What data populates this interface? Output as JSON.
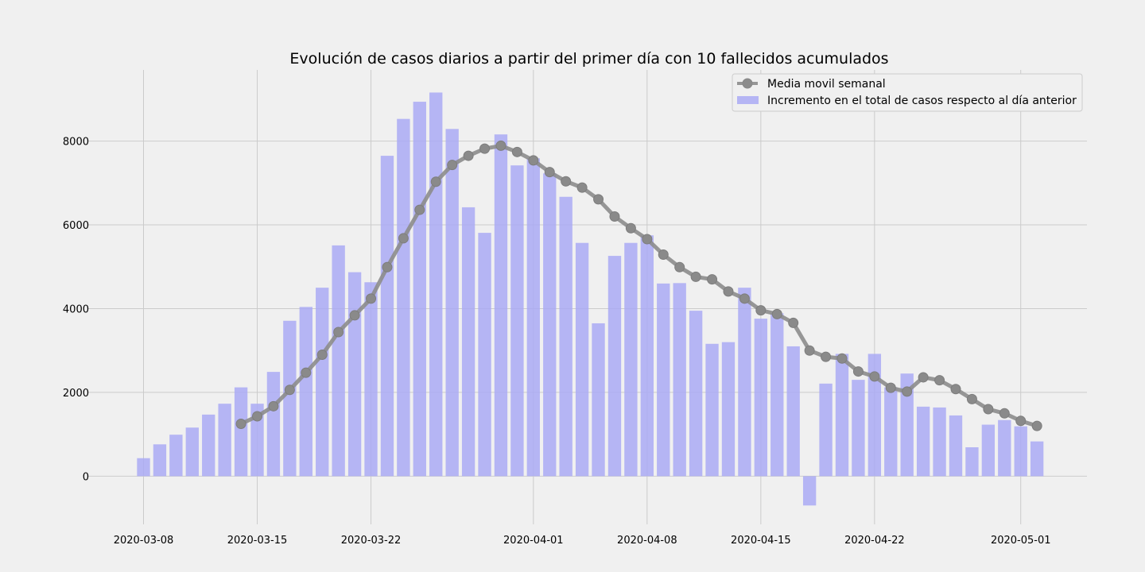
{
  "chart_data": {
    "type": "bar+line",
    "title": "Evolución de casos diarios a partir del primer día con 10 fallecidos acumulados",
    "xlabel": "",
    "ylabel": "",
    "x_start": "2020-03-08",
    "x_ticks": [
      "2020-03-08",
      "2020-03-15",
      "2020-03-22",
      "2020-04-01",
      "2020-04-08",
      "2020-04-15",
      "2020-04-22",
      "2020-05-01"
    ],
    "y_ticks": [
      0,
      2000,
      4000,
      6000,
      8000
    ],
    "ylim": [
      -1150,
      9700
    ],
    "grid": true,
    "legend_position": "top-right",
    "bar_color": "#aaaaf5",
    "line_color": "#8c8c8c",
    "series": [
      {
        "name": "Incremento en el total de casos respecto al día anterior",
        "type": "bar",
        "values": [
          430,
          760,
          990,
          1160,
          1470,
          1730,
          2120,
          1730,
          2490,
          3710,
          4040,
          4500,
          5510,
          4870,
          4630,
          7650,
          8530,
          8940,
          9160,
          8290,
          6420,
          5810,
          8160,
          7420,
          7590,
          7230,
          6670,
          5570,
          3650,
          5260,
          5570,
          5750,
          4600,
          4610,
          3950,
          3160,
          3200,
          4500,
          3760,
          3890,
          3100,
          -700,
          2210,
          2920,
          2300,
          2920,
          2120,
          2450,
          1660,
          1640,
          1450,
          690,
          1230,
          1340,
          1190,
          830
        ]
      },
      {
        "name": "Media movil semanal",
        "type": "line",
        "start_date": "2020-03-14",
        "values": [
          1250,
          1430,
          1670,
          2060,
          2470,
          2900,
          3440,
          3840,
          4240,
          4990,
          5680,
          6360,
          7030,
          7430,
          7650,
          7820,
          7890,
          7740,
          7540,
          7260,
          7040,
          6890,
          6610,
          6200,
          5920,
          5660,
          5290,
          4990,
          4760,
          4700,
          4410,
          4240,
          3960,
          3870,
          3660,
          3000,
          2850,
          2810,
          2500,
          2380,
          2110,
          2020,
          2360,
          2290,
          2080,
          1840,
          1600,
          1500,
          1320,
          1200
        ]
      }
    ]
  }
}
